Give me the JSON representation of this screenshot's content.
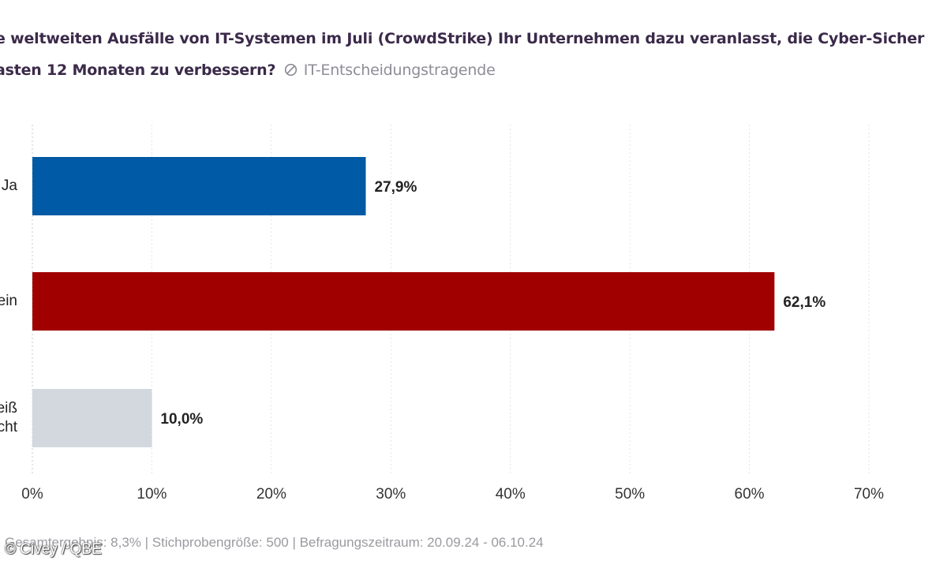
{
  "chart_data": {
    "type": "bar",
    "orientation": "horizontal",
    "title_line_1": "e weltweiten Ausfälle von IT-Systemen im Juli (CrowdStrike) Ihr Unternehmen dazu veranlasst, die Cyber-Sicher",
    "title_line_2": "asten 12 Monaten zu verbessern?",
    "audience": "IT-Entscheidungstragende",
    "categories": [
      "Ja",
      "ein",
      "eiß\ncht"
    ],
    "values": [
      27.9,
      62.1,
      10.0
    ],
    "value_labels": [
      "27,9%",
      "62,1%",
      "10,0%"
    ],
    "bar_colors": [
      "#005aa5",
      "#a00000",
      "#d2d8de"
    ],
    "xlim": [
      0,
      70
    ],
    "xticks": [
      0,
      10,
      20,
      30,
      40,
      50,
      60,
      70
    ],
    "xtick_labels": [
      "0%",
      "10%",
      "20%",
      "30%",
      "40%",
      "50%",
      "60%",
      "70%"
    ],
    "grid": true,
    "xlabel": "",
    "ylabel": ""
  },
  "footer": {
    "text": "Gesamtergebnis: 8,3% | Stichprobengröße: 500 | Befragungszeitraum: 20.09.24 - 06.10.24",
    "copyright": "© Civey / QBE"
  },
  "colors": {
    "title": "#3b2a4a",
    "muted": "#8d8d96",
    "grid": "#e3e3e3",
    "axis": "#c8c8c8"
  }
}
